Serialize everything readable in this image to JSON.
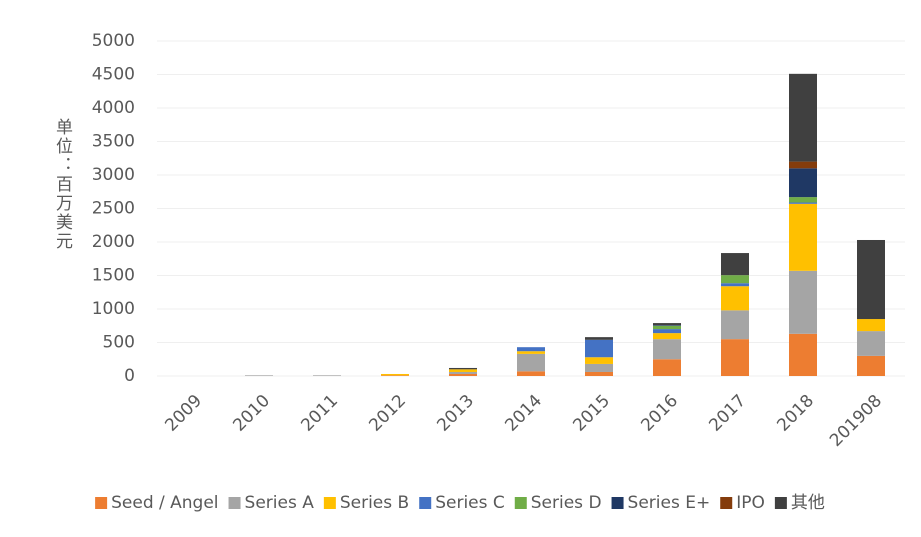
{
  "chart_data": {
    "type": "stacked_bar",
    "y_label": "单位：百万美元",
    "categories": [
      "2009",
      "2010",
      "2011",
      "2012",
      "2013",
      "2014",
      "2015",
      "2016",
      "2017",
      "2018",
      "201908"
    ],
    "series": [
      {
        "name": "Seed / Angel",
        "color": "#ed7d31",
        "values": [
          0,
          0,
          0,
          10,
          30,
          70,
          60,
          250,
          550,
          630,
          300
        ]
      },
      {
        "name": "Series A",
        "color": "#a5a5a5",
        "values": [
          0,
          10,
          10,
          0,
          30,
          260,
          120,
          300,
          430,
          940,
          370
        ]
      },
      {
        "name": "Series B",
        "color": "#ffc000",
        "values": [
          0,
          0,
          0,
          20,
          40,
          40,
          100,
          90,
          360,
          1000,
          180
        ]
      },
      {
        "name": "Series C",
        "color": "#4472c4",
        "values": [
          0,
          0,
          0,
          0,
          0,
          60,
          260,
          60,
          45,
          20,
          0
        ]
      },
      {
        "name": "Series D",
        "color": "#70ad47",
        "values": [
          0,
          0,
          0,
          0,
          0,
          0,
          0,
          50,
          120,
          80,
          0
        ]
      },
      {
        "name": "Series E+",
        "color": "#1f3864",
        "values": [
          0,
          0,
          0,
          0,
          0,
          0,
          0,
          10,
          0,
          430,
          0
        ]
      },
      {
        "name": "IPO",
        "color": "#843c0c",
        "values": [
          0,
          0,
          0,
          0,
          0,
          0,
          0,
          0,
          0,
          100,
          0
        ]
      },
      {
        "name": "其他",
        "color": "#404040",
        "values": [
          0,
          0,
          0,
          0,
          20,
          0,
          40,
          30,
          330,
          1310,
          1180
        ]
      }
    ],
    "ylim": [
      0,
      5000
    ],
    "yticks": [
      0,
      500,
      1000,
      1500,
      2000,
      2500,
      3000,
      3500,
      4000,
      4500,
      5000
    ],
    "grid": true,
    "legend": "bottom"
  }
}
